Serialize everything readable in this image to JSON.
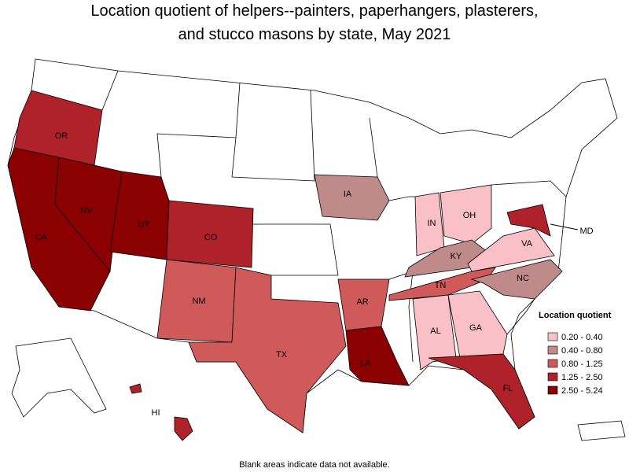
{
  "title_line1": "Location quotient of helpers--painters, paperhangers, plasterers,",
  "title_line2": "and stucco masons by state, May 2021",
  "legend": {
    "title": "Location quotient",
    "bins": [
      {
        "label": "0.20 - 0.40",
        "color": "#f9c0c8"
      },
      {
        "label": "0.40 - 0.80",
        "color": "#bf8a8a"
      },
      {
        "label": "0.80 - 1.25",
        "color": "#d05a5a"
      },
      {
        "label": "1.25 - 2.50",
        "color": "#b0222a"
      },
      {
        "label": "2.50 - 5.24",
        "color": "#8b0000"
      }
    ]
  },
  "states": [
    {
      "label": "OR",
      "color": "#b0222a"
    },
    {
      "label": "CA",
      "color": "#8b0000"
    },
    {
      "label": "NV",
      "color": "#8b0000"
    },
    {
      "label": "UT",
      "color": "#8b0000"
    },
    {
      "label": "CO",
      "color": "#b0222a"
    },
    {
      "label": "NM",
      "color": "#d05a5a"
    },
    {
      "label": "TX",
      "color": "#d05a5a"
    },
    {
      "label": "IA",
      "color": "#bf8a8a"
    },
    {
      "label": "AR",
      "color": "#d05a5a"
    },
    {
      "label": "LA",
      "color": "#8b0000"
    },
    {
      "label": "IN",
      "color": "#f9c0c8"
    },
    {
      "label": "OH",
      "color": "#f9c0c8"
    },
    {
      "label": "KY",
      "color": "#bf8a8a"
    },
    {
      "label": "TN",
      "color": "#d05a5a"
    },
    {
      "label": "NC",
      "color": "#bf8a8a"
    },
    {
      "label": "VA",
      "color": "#f9c0c8"
    },
    {
      "label": "MD",
      "color": "#b0222a"
    },
    {
      "label": "AL",
      "color": "#f9c0c8"
    },
    {
      "label": "GA",
      "color": "#f9c0c8"
    },
    {
      "label": "FL",
      "color": "#b0222a"
    },
    {
      "label": "HI",
      "color": "#b0222a"
    }
  ],
  "footnote": "Blank areas indicate data not available."
}
